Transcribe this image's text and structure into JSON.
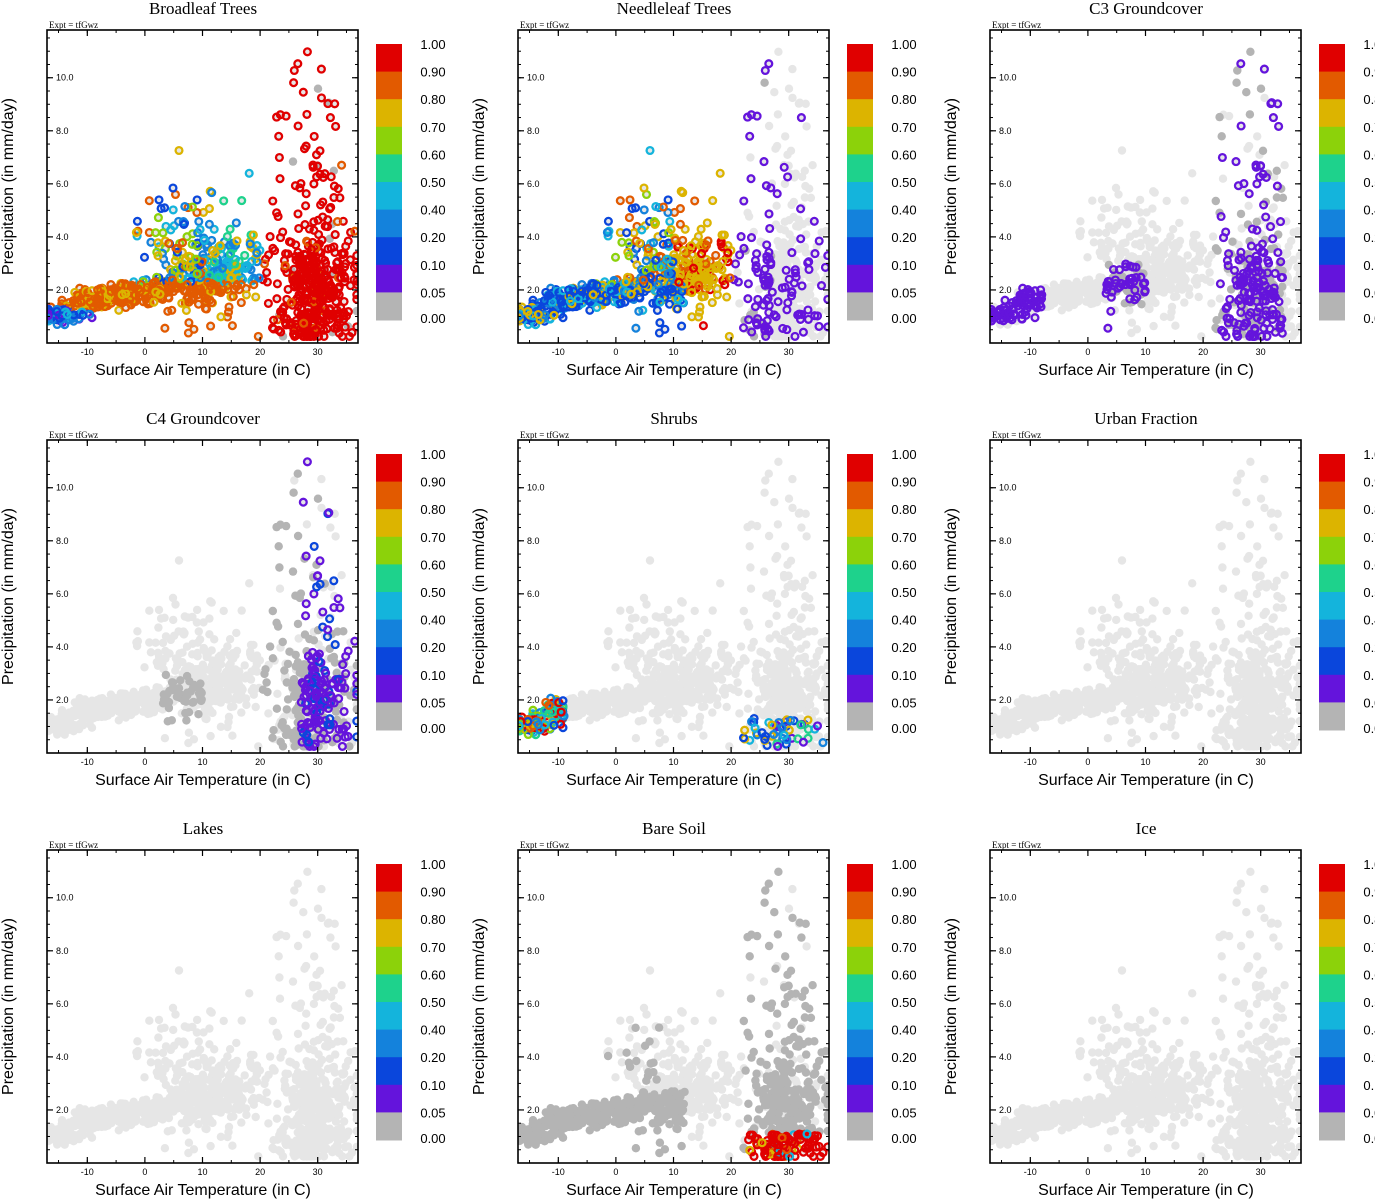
{
  "chart_data": {
    "type": "scatter",
    "layout": "3x3 grid of scatter panels",
    "xlabel": "Surface Air Temperature (in C)",
    "ylabel": "Precipitation (in mm/day)",
    "xlim": [
      -17,
      37
    ],
    "ylim": [
      0,
      11.8
    ],
    "x_ticks": [
      -10,
      0,
      10,
      20,
      30
    ],
    "x_tick_labels": [
      "-10",
      "0",
      "10",
      "20",
      "30"
    ],
    "y_ticks": [
      2,
      4,
      6,
      8,
      10
    ],
    "y_tick_labels": [
      "2.0",
      "4.0",
      "6.0",
      "8.0",
      "10.0"
    ],
    "expt_label": "Expt = tfGwz",
    "colorbar": {
      "labels": [
        "1.00",
        "0.90",
        "0.80",
        "0.70",
        "0.60",
        "0.50",
        "0.40",
        "0.20",
        "0.10",
        "0.05",
        "0.00"
      ],
      "colors": [
        "#e00000",
        "#e25a00",
        "#dcb400",
        "#8cd20a",
        "#1ed28c",
        "#14b4dc",
        "#1482dc",
        "#0a46dc",
        "#6414dc",
        "#b4b4b4"
      ]
    },
    "nodata_color": "#e6e6e6",
    "zero_color": "#b4b4b4",
    "panels": [
      {
        "title": "Broadleaf Trees",
        "pattern": "broadleaf"
      },
      {
        "title": "Needleleaf Trees",
        "pattern": "needleleaf"
      },
      {
        "title": "C3 Groundcover",
        "pattern": "c3"
      },
      {
        "title": "C4 Groundcover",
        "pattern": "c4"
      },
      {
        "title": "Shrubs",
        "pattern": "shrubs"
      },
      {
        "title": "Urban Fraction",
        "pattern": "none"
      },
      {
        "title": "Lakes",
        "pattern": "none"
      },
      {
        "title": "Bare Soil",
        "pattern": "bare"
      },
      {
        "title": "Ice",
        "pattern": "none"
      }
    ],
    "point_cloud_note": "approximately 1200 grid cells shared by all panels, colored by vegetation fraction class"
  }
}
